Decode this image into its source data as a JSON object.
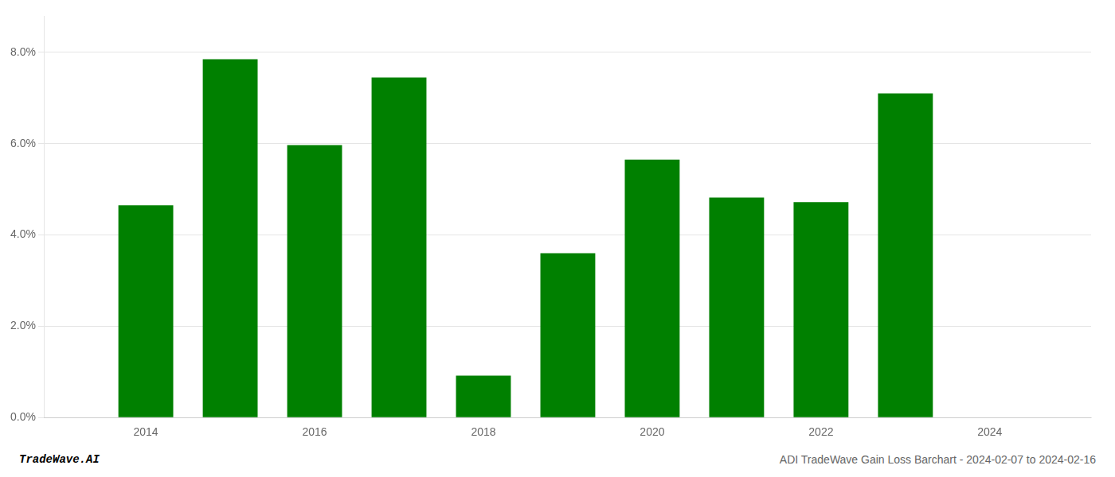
{
  "chart_data": {
    "type": "bar",
    "x": [
      2014,
      2015,
      2016,
      2017,
      2018,
      2019,
      2020,
      2021,
      2022,
      2023
    ],
    "values": [
      0.0465,
      0.0785,
      0.0597,
      0.0745,
      0.0092,
      0.036,
      0.0565,
      0.0482,
      0.0472,
      0.071
    ],
    "color": "#008000",
    "xlim": [
      2012.8,
      2025.2
    ],
    "xticks": [
      2014,
      2016,
      2018,
      2020,
      2022,
      2024
    ],
    "ylim": [
      0.0,
      0.088
    ],
    "yticks": [
      {
        "value": 0.0,
        "label": "0.0%"
      },
      {
        "value": 0.02,
        "label": "2.0%"
      },
      {
        "value": 0.04,
        "label": "4.0%"
      },
      {
        "value": 0.06,
        "label": "6.0%"
      },
      {
        "value": 0.08,
        "label": "8.0%"
      }
    ],
    "grid": "y",
    "annotations": [
      "TradeWave.AI",
      "ADI TradeWave Gain Loss Barchart - 2024-02-07 to 2024-02-16"
    ]
  }
}
